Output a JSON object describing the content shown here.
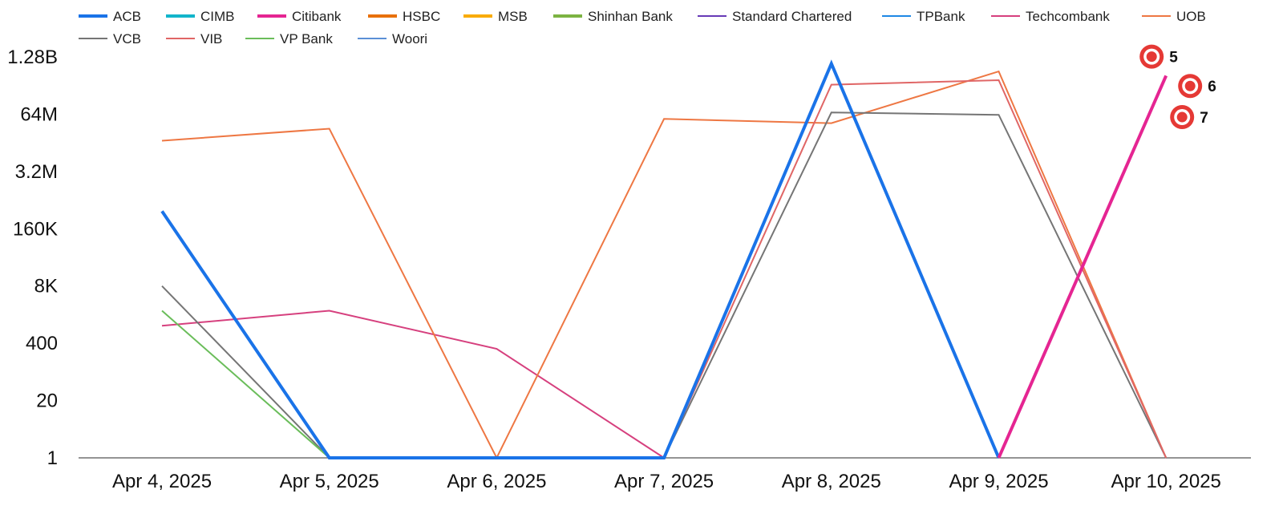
{
  "chart_data": {
    "type": "line",
    "title": "",
    "xlabel": "",
    "ylabel": "",
    "y_scale": "log",
    "y_ticks": [
      {
        "label": "1",
        "value": 1
      },
      {
        "label": "20",
        "value": 20
      },
      {
        "label": "400",
        "value": 400
      },
      {
        "label": "8K",
        "value": 8000
      },
      {
        "label": "160K",
        "value": 160000
      },
      {
        "label": "3.2M",
        "value": 3200000
      },
      {
        "label": "64M",
        "value": 64000000
      },
      {
        "label": "1.28B",
        "value": 1280000000
      }
    ],
    "ylim": [
      1,
      1280000000
    ],
    "x": [
      "Apr 4, 2025",
      "Apr 5, 2025",
      "Apr 6, 2025",
      "Apr 7, 2025",
      "Apr 8, 2025",
      "Apr 9, 2025",
      "Apr 10, 2025"
    ],
    "legend_position": "top",
    "grid": false,
    "series": [
      {
        "name": "ACB",
        "color": "#1a73e8",
        "width": 4,
        "values": [
          400000,
          0,
          0,
          0,
          900000000,
          0,
          null
        ]
      },
      {
        "name": "CIMB",
        "color": "#12b5cb",
        "width": 4,
        "values": [
          null,
          null,
          null,
          null,
          null,
          null,
          null
        ]
      },
      {
        "name": "Citibank",
        "color": "#e52592",
        "width": 4,
        "values": [
          null,
          null,
          null,
          null,
          null,
          0,
          480000000
        ]
      },
      {
        "name": "HSBC",
        "color": "#e8710a",
        "width": 4,
        "values": [
          null,
          null,
          null,
          null,
          null,
          null,
          null
        ]
      },
      {
        "name": "MSB",
        "color": "#f9ab00",
        "width": 4,
        "values": [
          null,
          null,
          null,
          null,
          null,
          null,
          null
        ]
      },
      {
        "name": "Shinhan Bank",
        "color": "#7cb342",
        "width": 4,
        "values": [
          null,
          null,
          null,
          null,
          null,
          null,
          null
        ]
      },
      {
        "name": "Standard Chartered",
        "color": "#673ab7",
        "width": 2,
        "values": [
          null,
          null,
          null,
          null,
          null,
          null,
          null
        ]
      },
      {
        "name": "TPBank",
        "color": "#1e88e5",
        "width": 2,
        "values": [
          null,
          null,
          null,
          null,
          null,
          null,
          null
        ]
      },
      {
        "name": "Techcombank",
        "color": "#d6407e",
        "width": 2,
        "values": [
          1000,
          2200,
          300,
          0,
          null,
          null,
          null
        ]
      },
      {
        "name": "UOB",
        "color": "#ee7743",
        "width": 2,
        "values": [
          16000000,
          30000000,
          0,
          50000000,
          40000000,
          600000000,
          0
        ]
      },
      {
        "name": "VCB",
        "color": "#757575",
        "width": 2,
        "values": [
          8000,
          0,
          null,
          0,
          70000000,
          62000000,
          0
        ]
      },
      {
        "name": "VIB",
        "color": "#e06666",
        "width": 2,
        "values": [
          null,
          null,
          null,
          0,
          300000000,
          380000000,
          0
        ]
      },
      {
        "name": "VP Bank",
        "color": "#6abd5a",
        "width": 2,
        "values": [
          2200,
          0,
          null,
          null,
          null,
          null,
          null
        ]
      },
      {
        "name": "Woori",
        "color": "#5b8fd6",
        "width": 2,
        "values": [
          null,
          null,
          null,
          null,
          null,
          null,
          null
        ]
      }
    ],
    "annotations": [
      {
        "label": "5",
        "x": "Apr 10, 2025",
        "value": 1300000000
      },
      {
        "label": "6",
        "x": "Apr 10, 2025",
        "value": 280000000
      },
      {
        "label": "7",
        "x": "Apr 10, 2025",
        "value": 55000000
      }
    ]
  }
}
